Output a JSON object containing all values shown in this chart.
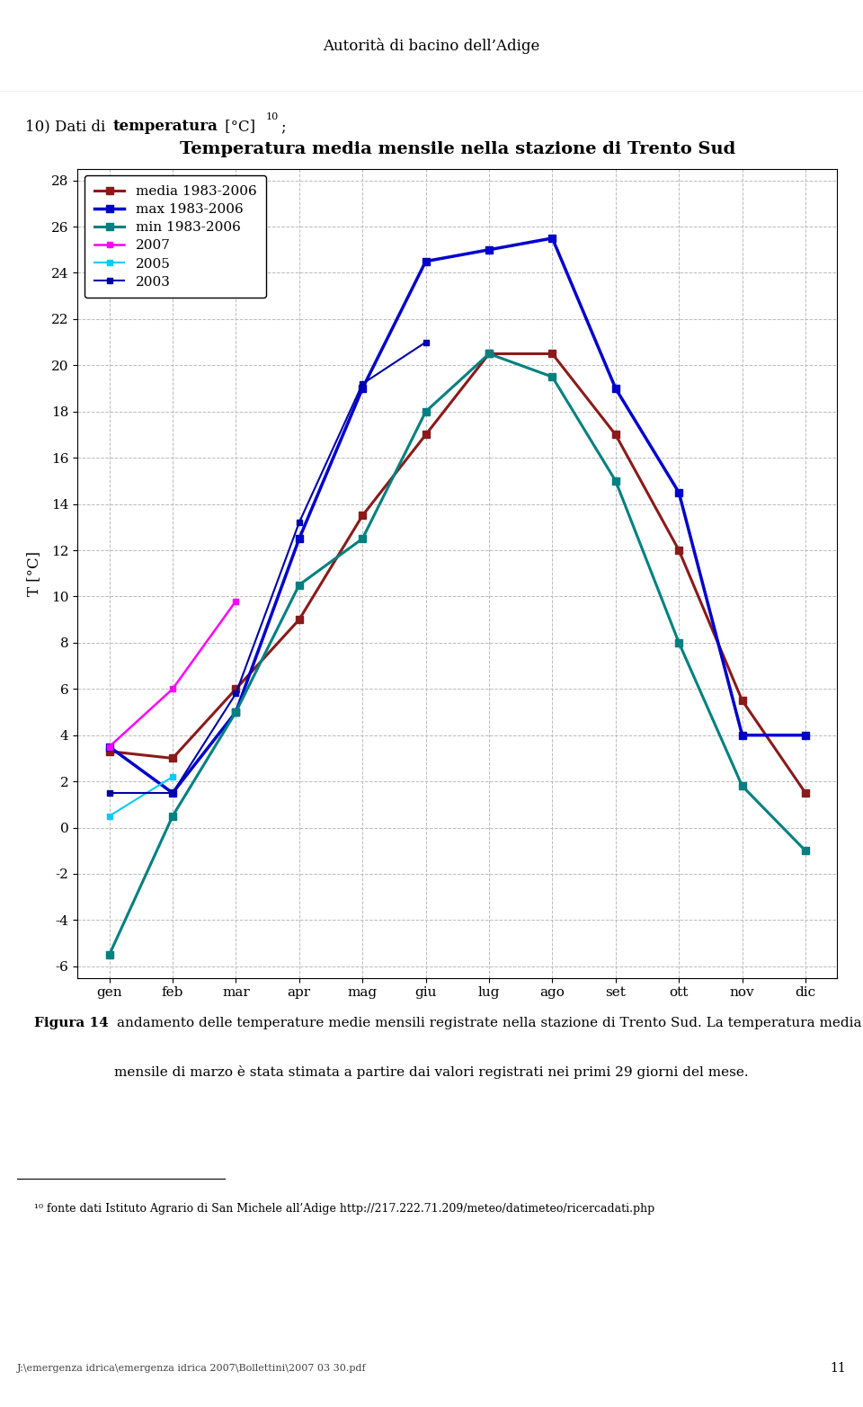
{
  "header_center": "Autorità di bacino dell’Adige",
  "section_title_plain": "10) Dati di ",
  "section_title_bold": "temperatura",
  "section_title_suffix": " [°C]",
  "section_title_super": "10",
  "section_title_end": ";",
  "chart_title": "Temperatura media mensile nella stazione di Trento Sud",
  "ylabel": "T [°C]",
  "months": [
    "gen",
    "feb",
    "mar",
    "apr",
    "mag",
    "giu",
    "lug",
    "ago",
    "set",
    "ott",
    "nov",
    "dic"
  ],
  "series": [
    {
      "key": "media_1983_2006",
      "label": "media 1983-2006",
      "color": "#8B1A1A",
      "linewidth": 2.2,
      "markersize": 6,
      "values": [
        3.3,
        3.0,
        6.0,
        9.0,
        13.5,
        17.0,
        20.5,
        20.5,
        17.0,
        12.0,
        5.5,
        1.5
      ]
    },
    {
      "key": "max_1983_2006",
      "label": "max 1983-2006",
      "color": "#0000CC",
      "linewidth": 2.5,
      "markersize": 6,
      "values": [
        3.5,
        1.5,
        5.0,
        12.5,
        19.0,
        24.5,
        25.0,
        25.5,
        19.0,
        14.5,
        4.0,
        4.0
      ]
    },
    {
      "key": "min_1983_2006",
      "label": "min 1983-2006",
      "color": "#008080",
      "linewidth": 2.2,
      "markersize": 6,
      "values": [
        -5.5,
        0.5,
        5.0,
        10.5,
        12.5,
        18.0,
        20.5,
        19.5,
        15.0,
        8.0,
        1.8,
        -1.0
      ]
    },
    {
      "key": "y2007",
      "label": "2007",
      "color": "#FF00FF",
      "linewidth": 1.8,
      "markersize": 5,
      "values": [
        3.5,
        6.0,
        9.8,
        null,
        null,
        null,
        null,
        null,
        null,
        null,
        null,
        null
      ]
    },
    {
      "key": "y2005",
      "label": "2005",
      "color": "#00CCFF",
      "linewidth": 1.5,
      "markersize": 5,
      "values": [
        0.5,
        2.2,
        null,
        null,
        null,
        null,
        null,
        null,
        null,
        null,
        null,
        null
      ]
    },
    {
      "key": "y2003",
      "label": "2003",
      "color": "#0000AA",
      "linewidth": 1.5,
      "markersize": 5,
      "values": [
        1.5,
        1.5,
        5.8,
        13.2,
        19.2,
        21.0,
        null,
        null,
        null,
        null,
        null,
        null
      ]
    }
  ],
  "ylim_min": -6.5,
  "ylim_max": 28.5,
  "yticks": [
    -6,
    -4,
    -2,
    0,
    2,
    4,
    6,
    8,
    10,
    12,
    14,
    16,
    18,
    20,
    22,
    24,
    26,
    28
  ],
  "fig_caption_bold": "Figura 14",
  "fig_caption_text": " andamento delle temperature medie mensili registrate nella stazione di Trento Sud. La temperatura media\nmensile di marzo è stata stimata a partire dai valori registrati nei primi 29 giorni del mese.",
  "footnote_line": "¹⁰ fonte dati Istituto Agrario di San Michele all’Adige http://217.222.71.209/meteo/datimeteo/ricercadati.php",
  "footer_path": "J:\\emergenza idrica\\emergenza idrica 2007\\Bollettini\\2007 03 30.pdf",
  "footer_page": "11",
  "background_color": "#FFFFFF"
}
